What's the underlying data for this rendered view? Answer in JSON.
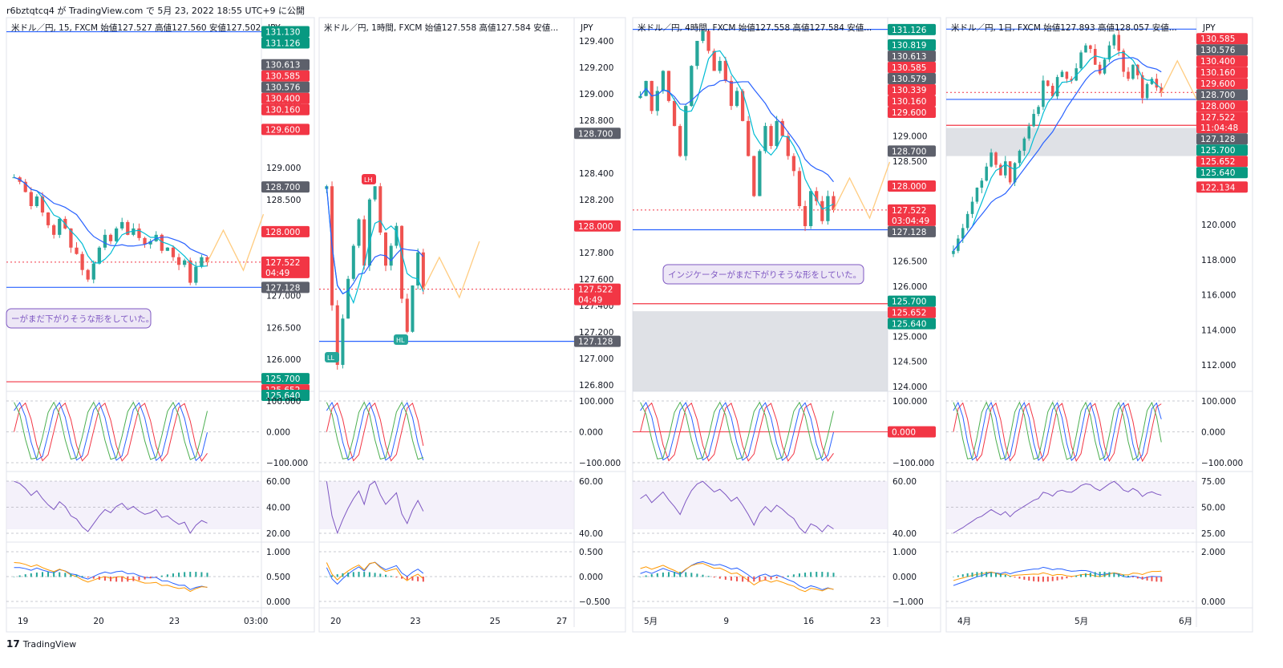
{
  "header": {
    "text": "r6bztqtcq4 が TradingView.com で 5月 23, 2022 18:55 UTC+9 に公開"
  },
  "footer": {
    "logo": "17",
    "brand": "TradingView"
  },
  "colors": {
    "up": "#26a69a",
    "down": "#ef5350",
    "red_tag": "#f23645",
    "green_tag": "#089981",
    "gray_tag": "#5d606b",
    "blue_line": "#2962ff",
    "cyan": "#00bcd4",
    "orange": "#ff9800",
    "purple": "#7e57c2",
    "zone_gray": "#d1d4dc",
    "zone_red": "#f8b4b4",
    "zone_green": "#a5d6c8"
  },
  "chart_data": [
    {
      "type": "candlestick",
      "title": "米ドル／円, 15, FXCM  始値127.527  高値127.560  安値127.502...",
      "symbol": "米ドル／円",
      "timeframe": "15",
      "source": "FXCM",
      "ohlc": {
        "open": 127.527,
        "high": 127.56,
        "low": 127.502
      },
      "price_axis_unit": "JPY",
      "price_ticks": [
        "130.000",
        "129.000",
        "128.500",
        "128.000",
        "127.500",
        "127.000",
        "126.500",
        "126.000"
      ],
      "ylim": [
        125.5,
        131.3
      ],
      "time_ticks": [
        "19",
        "20",
        "23",
        "03:00"
      ],
      "price_tags": [
        {
          "value": "131.130",
          "color": "green"
        },
        {
          "value": "131.126",
          "color": "green"
        },
        {
          "value": "130.613",
          "color": "gray"
        },
        {
          "value": "130.585",
          "color": "red"
        },
        {
          "value": "130.576",
          "color": "gray"
        },
        {
          "value": "130.400",
          "color": "red"
        },
        {
          "value": "130.160",
          "color": "red"
        },
        {
          "value": "129.600",
          "color": "red"
        },
        {
          "value": "128.700",
          "color": "gray"
        },
        {
          "value": "128.000",
          "color": "red"
        },
        {
          "value": "127.522",
          "sub": "04:49",
          "color": "red"
        },
        {
          "value": "127.128",
          "color": "gray"
        },
        {
          "value": "125.700",
          "color": "green"
        },
        {
          "value": "125.652",
          "color": "red"
        },
        {
          "value": "125.640",
          "color": "green"
        }
      ],
      "last_price": 127.522,
      "annotation": "ーがまだ下がりそうな形をしていた。",
      "close_series": [
        128.85,
        128.78,
        128.62,
        128.4,
        128.55,
        128.3,
        128.1,
        127.95,
        128.2,
        128.05,
        127.75,
        127.65,
        127.4,
        127.25,
        127.5,
        127.75,
        127.95,
        127.85,
        128.05,
        128.15,
        127.95,
        128.05,
        127.9,
        127.8,
        127.85,
        127.95,
        127.7,
        127.75,
        127.6,
        127.48,
        127.55,
        127.2,
        127.45,
        127.6,
        127.52
      ],
      "indicators": [
        {
          "name": "stochastic",
          "ticks": [
            "100.000",
            "0.000",
            "−100.000"
          ]
        },
        {
          "name": "rsi",
          "ticks": [
            "60.00",
            "40.00",
            "20.00"
          ]
        },
        {
          "name": "macd",
          "ticks": [
            "1.000",
            "0.500",
            "0.000"
          ]
        }
      ]
    },
    {
      "type": "candlestick",
      "title": "米ドル／円, 1時間, FXCM  始値127.558  高値127.584  安値...",
      "symbol": "米ドル／円",
      "timeframe": "1時間",
      "source": "FXCM",
      "ohlc": {
        "open": 127.558,
        "high": 127.584
      },
      "price_axis_unit": "JPY",
      "price_ticks": [
        "129.400",
        "129.200",
        "129.000",
        "128.800",
        "128.400",
        "128.200",
        "127.800",
        "127.600",
        "127.400",
        "127.200",
        "127.000",
        "126.800"
      ],
      "ylim": [
        126.75,
        129.55
      ],
      "time_ticks": [
        "20",
        "23",
        "25",
        "27"
      ],
      "price_tags": [
        {
          "value": "128.700",
          "color": "gray"
        },
        {
          "value": "128.000",
          "color": "red"
        },
        {
          "value": "127.522",
          "sub": "04:49",
          "color": "red"
        },
        {
          "value": "127.128",
          "color": "gray"
        }
      ],
      "last_price": 127.522,
      "labels": [
        "LH",
        "LL",
        "HL"
      ],
      "close_series": [
        128.3,
        127.4,
        126.95,
        127.3,
        127.6,
        127.85,
        128.05,
        127.7,
        128.2,
        128.3,
        127.95,
        127.7,
        127.85,
        128.0,
        127.45,
        127.2,
        127.55,
        127.8,
        127.52
      ],
      "indicators": [
        {
          "name": "stochastic",
          "ticks": [
            "100.000",
            "0.000",
            "−100.000"
          ]
        },
        {
          "name": "rsi",
          "ticks": [
            "60.00",
            "40.00"
          ]
        },
        {
          "name": "macd",
          "ticks": [
            "0.500",
            "0.000",
            "−0.500"
          ]
        }
      ]
    },
    {
      "type": "candlestick",
      "title": "米ドル／円, 4時間, FXCM  始値127.558  高値127.584  安値...",
      "symbol": "米ドル／円",
      "timeframe": "4時間",
      "source": "FXCM",
      "ohlc": {
        "open": 127.558,
        "high": 127.584
      },
      "price_axis_unit": "JPY",
      "price_ticks": [
        "130.000",
        "129.000",
        "128.500",
        "126.500",
        "126.000",
        "125.000",
        "124.500",
        "124.000"
      ],
      "ylim": [
        123.9,
        131.3
      ],
      "time_ticks": [
        "5月",
        "9",
        "16",
        "23"
      ],
      "price_tags": [
        {
          "value": "131.126",
          "color": "green"
        },
        {
          "value": "130.819",
          "color": "green"
        },
        {
          "value": "130.613",
          "color": "gray"
        },
        {
          "value": "130.585",
          "color": "red"
        },
        {
          "value": "130.579",
          "color": "gray"
        },
        {
          "value": "130.339",
          "color": "red"
        },
        {
          "value": "130.160",
          "color": "red"
        },
        {
          "value": "129.600",
          "color": "red"
        },
        {
          "value": "128.700",
          "color": "gray"
        },
        {
          "value": "128.000",
          "color": "red"
        },
        {
          "value": "127.522",
          "sub": "03:04:49",
          "color": "red"
        },
        {
          "value": "127.128",
          "color": "gray"
        },
        {
          "value": "125.700",
          "color": "green"
        },
        {
          "value": "125.652",
          "color": "red"
        },
        {
          "value": "125.640",
          "color": "green"
        }
      ],
      "last_price": 127.522,
      "annotation": "インジケーターがまだ下がりそうな形をしていた。",
      "close_series": [
        129.8,
        130.1,
        129.5,
        129.9,
        130.3,
        129.7,
        129.2,
        128.6,
        129.6,
        130.4,
        130.9,
        131.1,
        130.7,
        130.3,
        130.5,
        130.1,
        129.6,
        129.9,
        129.3,
        128.6,
        127.8,
        128.7,
        129.2,
        128.8,
        129.3,
        129.0,
        128.6,
        128.3,
        127.6,
        127.2,
        127.9,
        127.7,
        127.3,
        127.8,
        127.52
      ],
      "indicators": [
        {
          "name": "stochastic",
          "ticks": [
            "100.000",
            "0.000",
            "−100.000"
          ],
          "tag": "0.000"
        },
        {
          "name": "rsi",
          "ticks": [
            "60.00",
            "40.00"
          ]
        },
        {
          "name": "macd",
          "ticks": [
            "1.000",
            "0.000",
            "−1.000"
          ]
        }
      ]
    },
    {
      "type": "candlestick",
      "title": "米ドル／円, 1日, FXCM  始値127.893  高値128.057  安値...",
      "symbol": "米ドル／円",
      "timeframe": "1日",
      "source": "FXCM",
      "ohlc": {
        "open": 127.893,
        "high": 128.057
      },
      "price_axis_unit": "JPY",
      "price_ticks": [
        "120.000",
        "118.000",
        "116.000",
        "114.000",
        "112.000"
      ],
      "ylim": [
        110.5,
        131.6
      ],
      "time_ticks": [
        "4月",
        "5月",
        "6月"
      ],
      "price_tags": [
        {
          "value": "130.585",
          "color": "red"
        },
        {
          "value": "130.576",
          "color": "gray"
        },
        {
          "value": "130.400",
          "color": "red"
        },
        {
          "value": "130.160",
          "color": "red"
        },
        {
          "value": "129.600",
          "color": "red"
        },
        {
          "value": "128.700",
          "color": "gray"
        },
        {
          "value": "128.000",
          "color": "red"
        },
        {
          "value": "127.522",
          "sub": "11:04:48",
          "color": "red"
        },
        {
          "value": "127.128",
          "color": "gray"
        },
        {
          "value": "125.700",
          "color": "green"
        },
        {
          "value": "125.652",
          "color": "red"
        },
        {
          "value": "125.640",
          "color": "green"
        },
        {
          "value": "122.134",
          "color": "red"
        }
      ],
      "last_price": 127.522,
      "close_series": [
        118.5,
        119.2,
        119.8,
        120.6,
        121.3,
        122.1,
        122.5,
        123.3,
        124.1,
        123.4,
        122.8,
        123.6,
        122.4,
        123.5,
        124.2,
        124.9,
        125.6,
        126.3,
        126.7,
        128.2,
        127.9,
        127.3,
        128.4,
        128.7,
        128.3,
        128.2,
        128.9,
        129.8,
        130.2,
        130.0,
        129.1,
        128.6,
        129.4,
        130.2,
        130.8,
        129.9,
        128.7,
        128.3,
        129.1,
        128.5,
        127.2,
        128.0,
        128.3,
        127.8,
        127.5
      ],
      "indicators": [
        {
          "name": "stochastic",
          "ticks": [
            "100.000",
            "0.000",
            "−100.000"
          ]
        },
        {
          "name": "rsi",
          "ticks": [
            "75.00",
            "50.00",
            "25.00"
          ]
        },
        {
          "name": "macd",
          "ticks": [
            "2.000",
            "0.000"
          ]
        }
      ]
    }
  ]
}
